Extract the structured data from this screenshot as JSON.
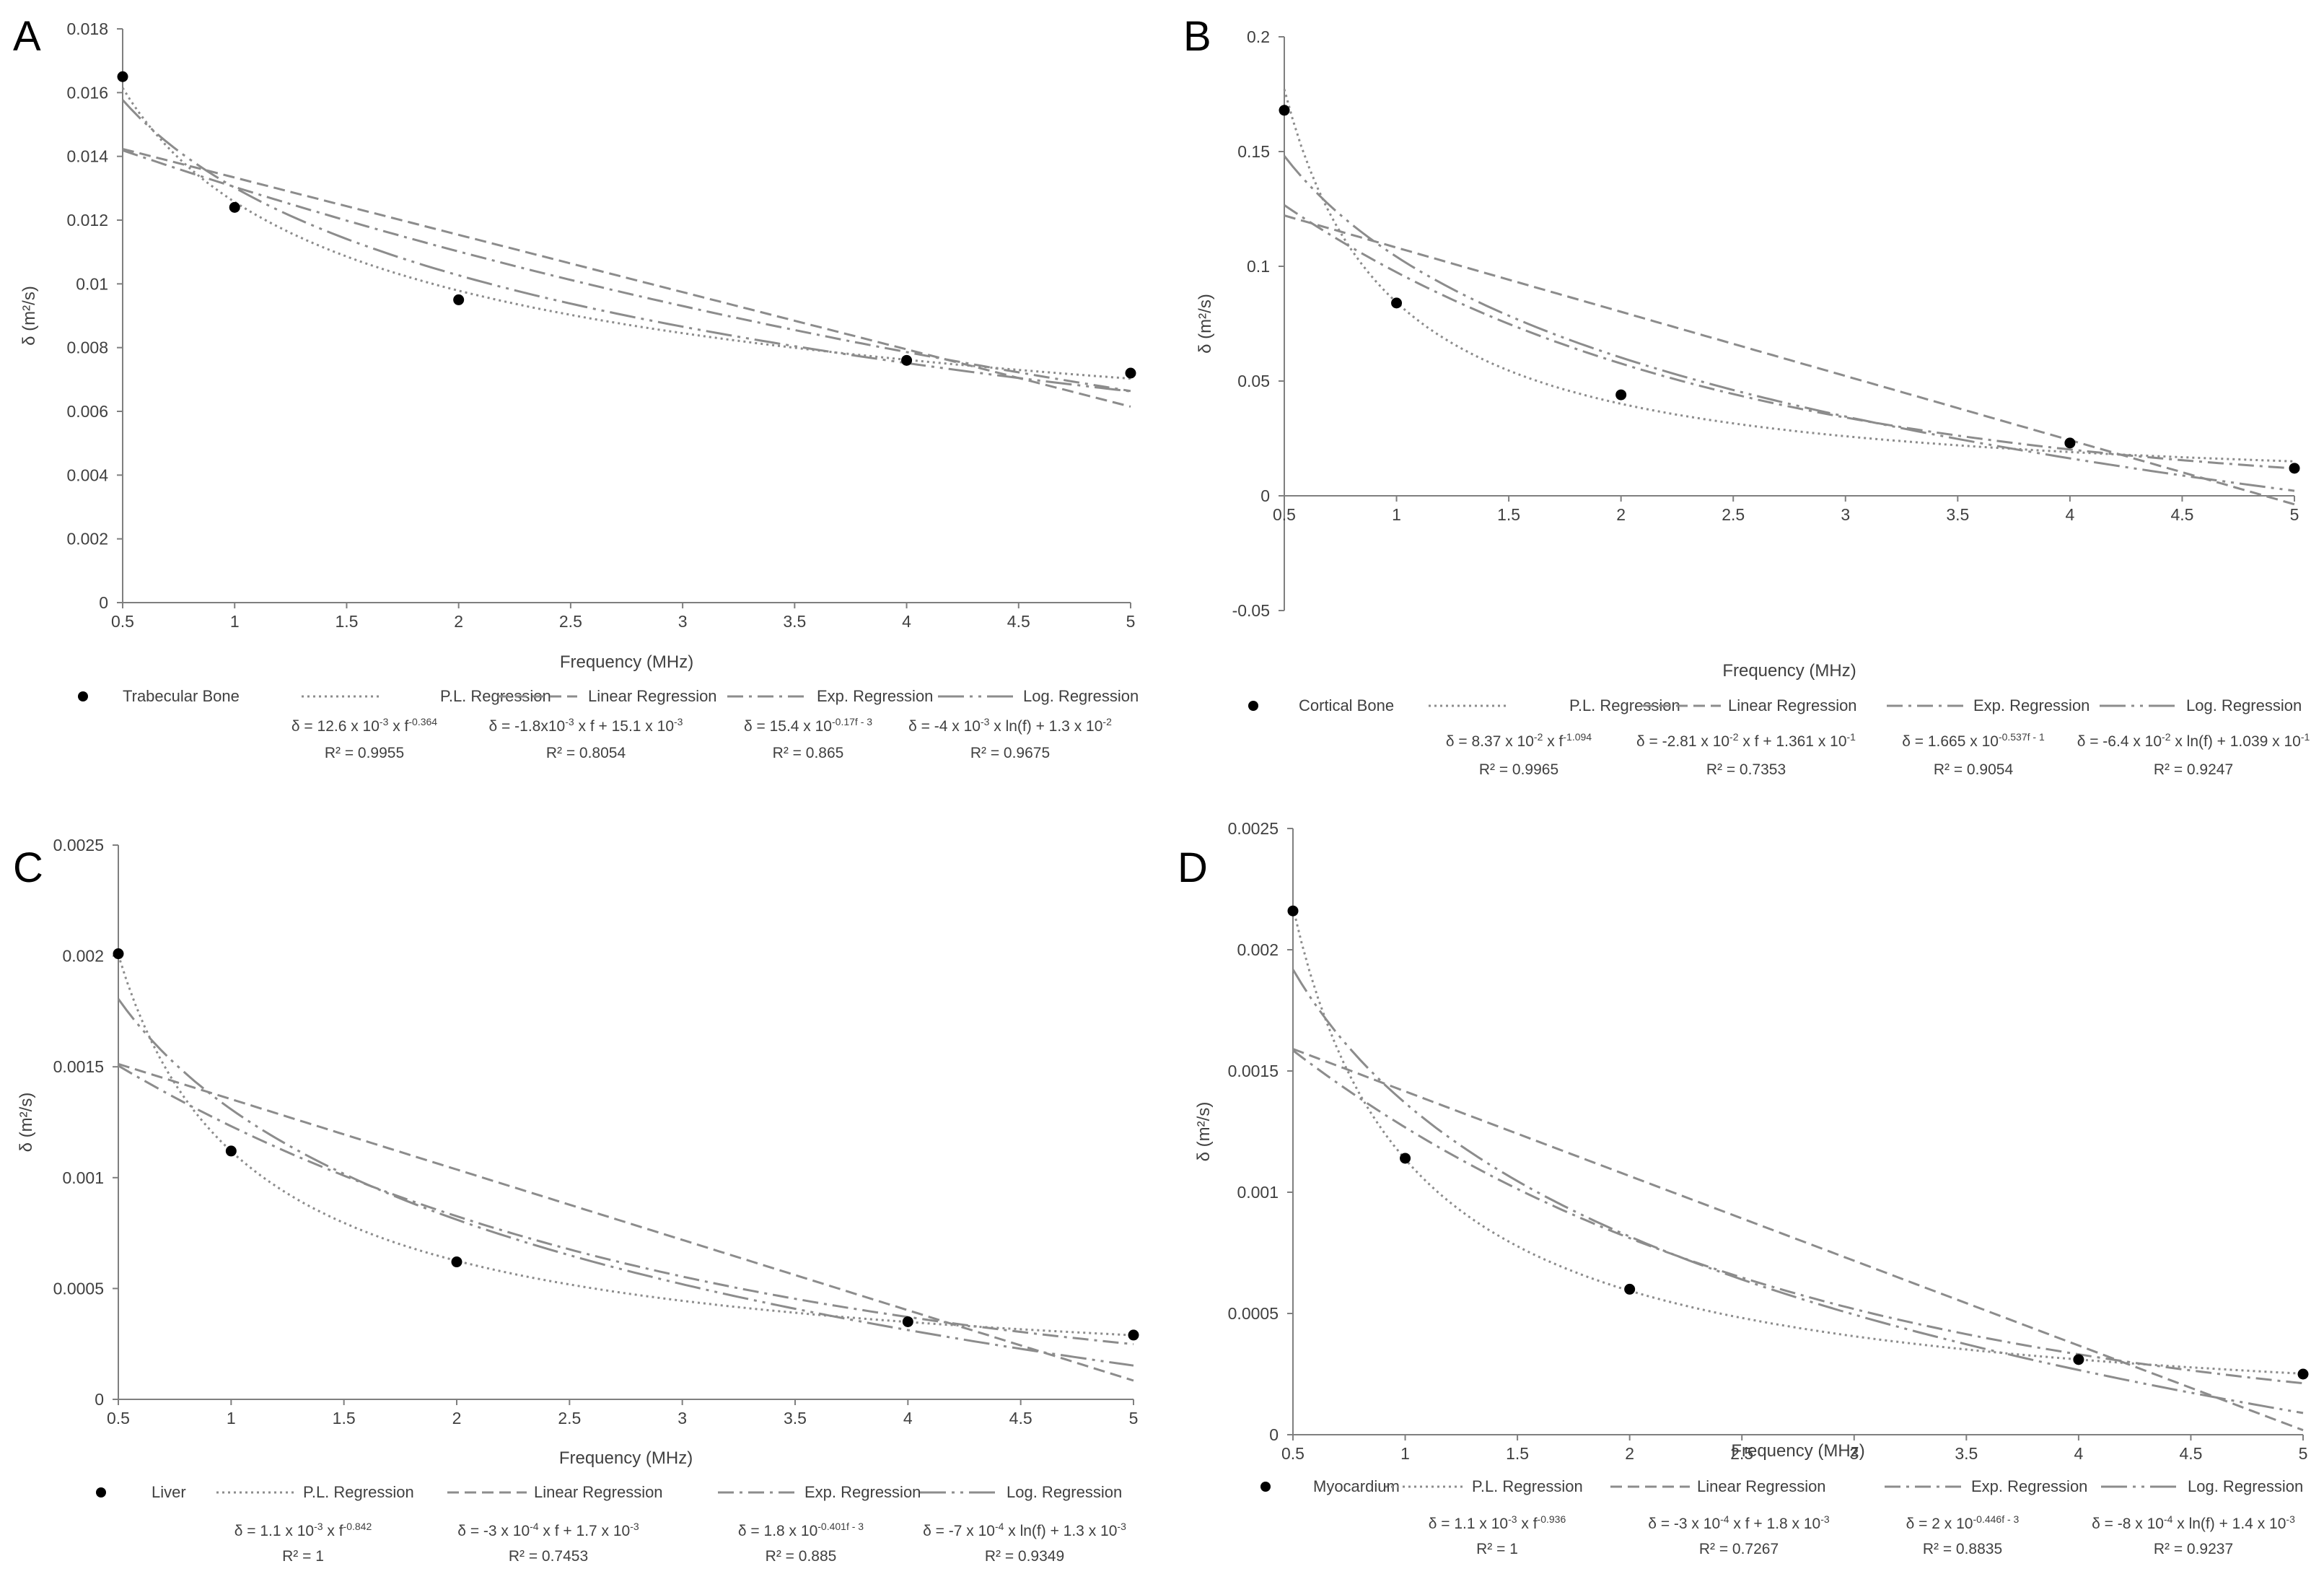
{
  "chart_data": [
    {
      "type": "scatter",
      "panel": "A",
      "xlabel": "Frequency (MHz)",
      "ylabel": "δ (m²/s)",
      "xlim": [
        0.5,
        5
      ],
      "xticks": [
        "0.5",
        "1",
        "1.5",
        "2",
        "2.5",
        "3",
        "3.5",
        "4",
        "4.5",
        "5"
      ],
      "ylim": [
        0,
        0.018
      ],
      "yticks": [
        "0",
        "0.002",
        "0.004",
        "0.006",
        "0.008",
        "0.01",
        "0.012",
        "0.014",
        "0.016",
        "0.018"
      ],
      "points": {
        "name": "Trabecular Bone",
        "x": [
          0.5,
          1,
          2,
          4,
          5
        ],
        "y": [
          0.0165,
          0.0124,
          0.0095,
          0.0076,
          0.0072
        ]
      },
      "fits": {
        "pl": {
          "name": "P.L. Regression",
          "eq": {
            "base": "δ = 12.6 x 10",
            "exp1": "-3",
            "mid": " x f",
            "exp2": "-0.364"
          },
          "r2": "R² = 0.9955"
        },
        "lin": {
          "name": "Linear Regression",
          "eq": {
            "base": "δ = -1.8x10",
            "exp1": "-3",
            "mid": " x f + 15.1 x 10",
            "exp2": "-3"
          },
          "r2": "R² = 0.8054"
        },
        "exp": {
          "name": "Exp. Regression",
          "eq": {
            "base": "δ = 15.4 x 10",
            "exp1": "-0.17f - 3",
            "mid": "",
            "exp2": ""
          },
          "r2": "R² = 0.865"
        },
        "log": {
          "name": "Log. Regression",
          "eq": {
            "base": "δ = -4 x 10",
            "exp1": "-3",
            "mid": " x ln(f) + 1.3 x 10",
            "exp2": "-2"
          },
          "r2": "R² = 0.9675"
        }
      }
    },
    {
      "type": "scatter",
      "panel": "B",
      "xlabel": "Frequency (MHz)",
      "ylabel": "δ (m²/s)",
      "xlim": [
        0.5,
        5
      ],
      "xticks": [
        "0.5",
        "1",
        "1.5",
        "2",
        "2.5",
        "3",
        "3.5",
        "4",
        "4.5",
        "5"
      ],
      "ylim": [
        -0.05,
        0.2
      ],
      "yticks": [
        "-0.05",
        "0",
        "0.05",
        "0.1",
        "0.15",
        "0.2"
      ],
      "points": {
        "name": "Cortical Bone",
        "x": [
          0.5,
          1,
          2,
          4,
          5
        ],
        "y": [
          0.168,
          0.084,
          0.044,
          0.023,
          0.012
        ]
      },
      "fits": {
        "pl": {
          "name": "P.L. Regression",
          "eq": {
            "base": "δ = 8.37 x 10",
            "exp1": "-2",
            "mid": " x f",
            "exp2": "-1.094"
          },
          "r2": "R² = 0.9965"
        },
        "lin": {
          "name": "Linear Regression",
          "eq": {
            "base": "δ = -2.81 x 10",
            "exp1": "-2",
            "mid": " x f + 1.361 x 10",
            "exp2": "-1"
          },
          "r2": "R² = 0.7353"
        },
        "exp": {
          "name": "Exp. Regression",
          "eq": {
            "base": "δ = 1.665 x 10",
            "exp1": "-0.537f - 1",
            "mid": "",
            "exp2": ""
          },
          "r2": "R² = 0.9054"
        },
        "log": {
          "name": "Log. Regression",
          "eq": {
            "base": "δ = -6.4 x 10",
            "exp1": "-2",
            "mid": " x ln(f) + 1.039 x 10",
            "exp2": "-1"
          },
          "r2": "R² = 0.9247"
        }
      }
    },
    {
      "type": "scatter",
      "panel": "C",
      "xlabel": "Frequency (MHz)",
      "ylabel": "δ (m²/s)",
      "xlim": [
        0.5,
        5
      ],
      "xticks": [
        "0.5",
        "1",
        "1.5",
        "2",
        "2.5",
        "3",
        "3.5",
        "4",
        "4.5",
        "5"
      ],
      "ylim": [
        0,
        0.0025
      ],
      "yticks": [
        "0",
        "0.0005",
        "0.001",
        "0.0015",
        "0.002",
        "0.0025"
      ],
      "points": {
        "name": "Liver",
        "x": [
          0.5,
          1,
          2,
          4,
          5
        ],
        "y": [
          0.00201,
          0.00112,
          0.00062,
          0.00035,
          0.00029
        ]
      },
      "fits": {
        "pl": {
          "name": "P.L. Regression",
          "eq": {
            "base": "δ = 1.1 x 10",
            "exp1": "-3",
            "mid": " x f",
            "exp2": "-0.842"
          },
          "r2": "R² = 1"
        },
        "lin": {
          "name": "Linear Regression",
          "eq": {
            "base": "δ = -3 x 10",
            "exp1": "-4",
            "mid": " x f + 1.7 x 10",
            "exp2": "-3"
          },
          "r2": "R² = 0.7453"
        },
        "exp": {
          "name": "Exp. Regression",
          "eq": {
            "base": "δ = 1.8 x 10",
            "exp1": "-0.401f - 3",
            "mid": "",
            "exp2": ""
          },
          "r2": "R² = 0.885"
        },
        "log": {
          "name": "Log. Regression",
          "eq": {
            "base": "δ = -7 x 10",
            "exp1": "-4",
            "mid": " x ln(f) + 1.3 x 10",
            "exp2": "-3"
          },
          "r2": "R² = 0.9349"
        }
      }
    },
    {
      "type": "scatter",
      "panel": "D",
      "xlabel": "Frequency (MHz)",
      "ylabel": "δ (m²/s)",
      "xlim": [
        0.5,
        5
      ],
      "xticks": [
        "0.5",
        "1",
        "1.5",
        "2",
        "2.5",
        "3",
        "3.5",
        "4",
        "4.5",
        "5"
      ],
      "ylim": [
        0,
        0.0025
      ],
      "yticks": [
        "0",
        "0.0005",
        "0.001",
        "0.0015",
        "0.002",
        "0.0025"
      ],
      "points": {
        "name": "Myocardium",
        "x": [
          0.5,
          1,
          2,
          4,
          5
        ],
        "y": [
          0.00216,
          0.00114,
          0.0006,
          0.00031,
          0.00025
        ]
      },
      "fits": {
        "pl": {
          "name": "P.L. Regression",
          "eq": {
            "base": "δ = 1.1 x 10",
            "exp1": "-3",
            "mid": " x f",
            "exp2": "-0.936"
          },
          "r2": "R² = 1"
        },
        "lin": {
          "name": "Linear Regression",
          "eq": {
            "base": "δ = -3 x 10",
            "exp1": "-4",
            "mid": " x f + 1.8 x 10",
            "exp2": "-3"
          },
          "r2": "R² = 0.7267"
        },
        "exp": {
          "name": "Exp. Regression",
          "eq": {
            "base": "δ = 2 x 10",
            "exp1": "-0.446f - 3",
            "mid": "",
            "exp2": ""
          },
          "r2": "R² = 0.8835"
        },
        "log": {
          "name": "Log. Regression",
          "eq": {
            "base": "δ = -8 x 10",
            "exp1": "-4",
            "mid": " x ln(f) + 1.4 x 10",
            "exp2": "-3"
          },
          "r2": "R² = 0.9237"
        }
      }
    }
  ],
  "colors": {
    "axis": "#7f7f7f",
    "fit": "#8c8c8c",
    "point": "#000000",
    "text": "#404040"
  }
}
